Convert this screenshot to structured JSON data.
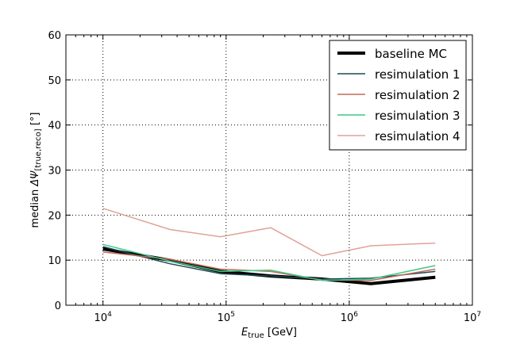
{
  "chart_data": {
    "type": "line",
    "xscale": "log",
    "xlim": [
      5000,
      10000000
    ],
    "ylim": [
      0,
      60
    ],
    "grid": true,
    "legend_position": "top-right",
    "xlabel": {
      "main": "E",
      "sub": "true",
      "rest": " [GeV]"
    },
    "ylabel": {
      "prefix": "median ",
      "symbol": "ΔΨ",
      "sub": "[true,reco]",
      "rest": " [°]"
    },
    "xticks": [
      {
        "value": 10000,
        "base": "10",
        "exp": "4"
      },
      {
        "value": 100000,
        "base": "10",
        "exp": "5"
      },
      {
        "value": 1000000,
        "base": "10",
        "exp": "6"
      },
      {
        "value": 10000000,
        "base": "10",
        "exp": "7"
      }
    ],
    "yticks": [
      {
        "value": 0,
        "label": "0"
      },
      {
        "value": 10,
        "label": "10"
      },
      {
        "value": 20,
        "label": "20"
      },
      {
        "value": 30,
        "label": "30"
      },
      {
        "value": 40,
        "label": "40"
      },
      {
        "value": 50,
        "label": "50"
      },
      {
        "value": 60,
        "label": "60"
      }
    ],
    "series": [
      {
        "name": "baseline MC",
        "color": "#000000",
        "width": 4,
        "x": [
          10000,
          35000,
          90000,
          230000,
          600000,
          1500000,
          5000000
        ],
        "y": [
          12.5,
          10.0,
          7.5,
          6.5,
          5.8,
          4.8,
          6.2
        ]
      },
      {
        "name": "resimulation 1",
        "color": "#1a4a55",
        "width": 1.5,
        "x": [
          10000,
          35000,
          90000,
          230000,
          600000,
          1500000,
          5000000
        ],
        "y": [
          13.0,
          9.2,
          7.0,
          6.5,
          5.8,
          6.0,
          7.5
        ]
      },
      {
        "name": "resimulation 2",
        "color": "#c46a58",
        "width": 1.5,
        "x": [
          10000,
          35000,
          90000,
          230000,
          600000,
          1500000,
          5000000
        ],
        "y": [
          11.8,
          10.2,
          8.0,
          7.5,
          5.6,
          5.5,
          8.0
        ]
      },
      {
        "name": "resimulation 3",
        "color": "#3cc987",
        "width": 1.5,
        "x": [
          10000,
          35000,
          90000,
          230000,
          600000,
          1500000,
          5000000
        ],
        "y": [
          13.5,
          9.8,
          7.5,
          7.8,
          5.5,
          5.8,
          8.8
        ]
      },
      {
        "name": "resimulation 4",
        "color": "#e0a29a",
        "width": 1.5,
        "x": [
          10000,
          35000,
          90000,
          230000,
          600000,
          1500000,
          5000000
        ],
        "y": [
          21.5,
          16.8,
          15.2,
          17.2,
          11.0,
          13.2,
          13.8
        ]
      }
    ]
  }
}
